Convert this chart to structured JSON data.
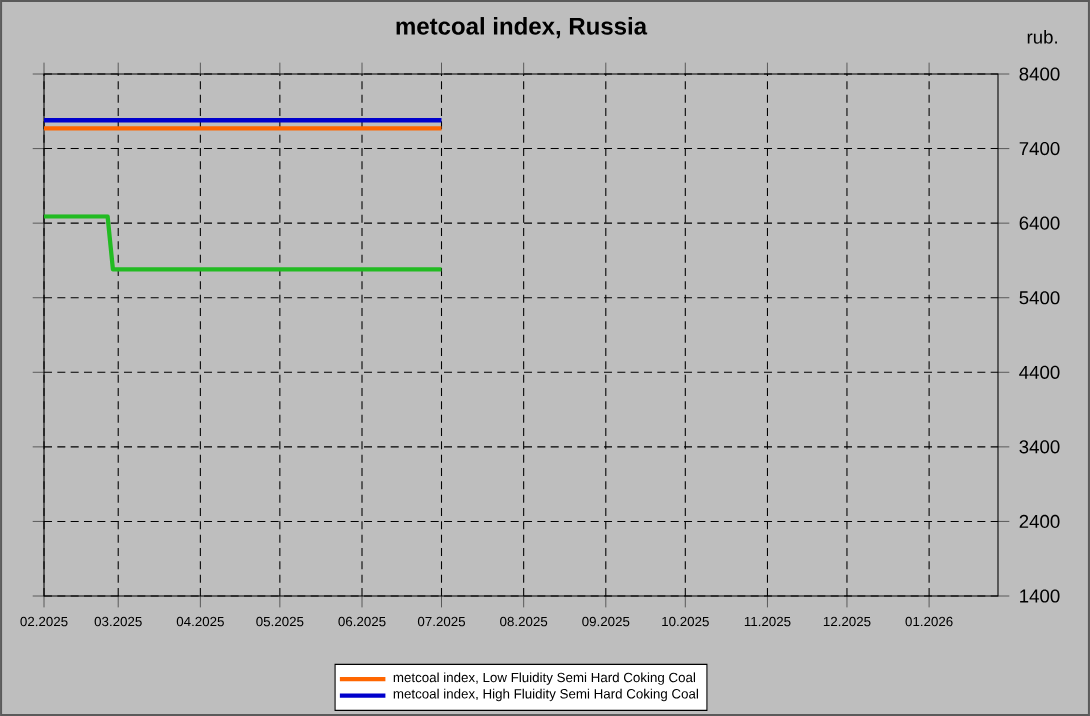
{
  "chart_data": {
    "type": "line",
    "title": "metcoal index, Russia",
    "ylabel": "rub.",
    "series": [
      {
        "name": "metcoal index, Low Fluidity Semi Hard Coking Coal",
        "color": "#ff6600",
        "x": [
          "2025-02-01",
          "2025-07-01"
        ],
        "values": [
          7670,
          7670
        ]
      },
      {
        "name": "metcoal index, High Fluidity Semi Hard Coking Coal",
        "color": "#0000cc",
        "x": [
          "2025-02-01",
          "2025-07-01"
        ],
        "values": [
          7780,
          7780
        ]
      },
      {
        "color": "#22bb22",
        "x": [
          "2025-02-01",
          "2025-02-25",
          "2025-02-27",
          "2025-07-01"
        ],
        "values": [
          6490,
          6490,
          5780,
          5780
        ]
      }
    ],
    "xlim": [
      "2025-02-01",
      "2026-01-27"
    ],
    "xticks": [
      {
        "value": "2025-02-01",
        "label": "02.2025"
      },
      {
        "value": "2025-03-01",
        "label": "03.2025"
      },
      {
        "value": "2025-04-01",
        "label": "04.2025"
      },
      {
        "value": "2025-05-01",
        "label": "05.2025"
      },
      {
        "value": "2025-06-01",
        "label": "06.2025"
      },
      {
        "value": "2025-07-01",
        "label": "07.2025"
      },
      {
        "value": "2025-08-01",
        "label": "08.2025"
      },
      {
        "value": "2025-09-01",
        "label": "09.2025"
      },
      {
        "value": "2025-10-01",
        "label": "10.2025"
      },
      {
        "value": "2025-11-01",
        "label": "11.2025"
      },
      {
        "value": "2025-12-01",
        "label": "12.2025"
      },
      {
        "value": "2026-01-01",
        "label": "01.2026"
      }
    ],
    "ylim": [
      1400,
      8400
    ],
    "yticks": [
      1400,
      2400,
      3400,
      4400,
      5400,
      6400,
      7400,
      8400
    ],
    "grid": true,
    "legend": "bottom"
  }
}
